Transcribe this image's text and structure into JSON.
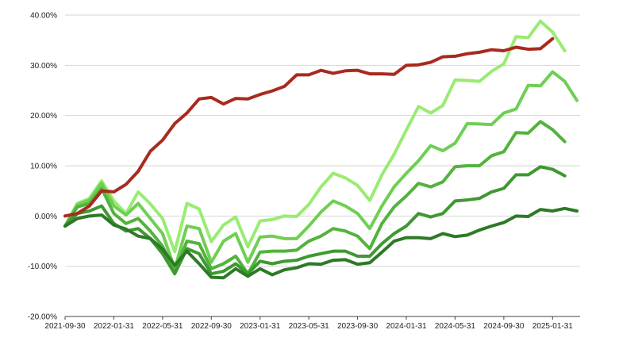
{
  "chart_data": {
    "type": "line",
    "title": "",
    "xlabel": "",
    "ylabel": "",
    "x_ticks": [
      "2021-09-30",
      "2022-01-31",
      "2022-05-31",
      "2022-09-30",
      "2023-01-31",
      "2023-05-31",
      "2023-09-30",
      "2024-01-31",
      "2024-05-31",
      "2024-09-30",
      "2025-01-31"
    ],
    "y_ticks": [
      "-20.00%",
      "-10.00%",
      "0.00%",
      "10.00%",
      "20.00%",
      "30.00%",
      "40.00%"
    ],
    "ylim": [
      -20,
      40
    ],
    "y_unit": "%",
    "grid": true,
    "legend": "none",
    "x": [
      "2021-09-30",
      "2021-10-31",
      "2021-11-30",
      "2021-12-31",
      "2022-01-31",
      "2022-02-28",
      "2022-03-31",
      "2022-04-30",
      "2022-05-31",
      "2022-06-30",
      "2022-07-31",
      "2022-08-31",
      "2022-09-30",
      "2022-10-31",
      "2022-11-30",
      "2022-12-31",
      "2023-01-31",
      "2023-02-28",
      "2023-03-31",
      "2023-04-30",
      "2023-05-31",
      "2023-06-30",
      "2023-07-31",
      "2023-08-31",
      "2023-09-30",
      "2023-10-31",
      "2023-11-30",
      "2023-12-31",
      "2024-01-31",
      "2024-02-29",
      "2024-03-31",
      "2024-04-30",
      "2024-05-31",
      "2024-06-30",
      "2024-07-31",
      "2024-08-31",
      "2024-09-30",
      "2024-10-31",
      "2024-11-30",
      "2024-12-31",
      "2025-01-31",
      "2025-02-28",
      "2025-03-31"
    ],
    "series": [
      {
        "color": "#a82a1e",
        "values": [
          0,
          0.5,
          2,
          5,
          4.8,
          6.3,
          8.9,
          12.9,
          15.1,
          18.4,
          20.5,
          23.3,
          23.6,
          22.3,
          23.4,
          23.3,
          24.2,
          24.9,
          25.8,
          28.1,
          28.1,
          29,
          28.4,
          28.9,
          29,
          28.3,
          28.3,
          28.2,
          30,
          30.1,
          30.6,
          31.7,
          31.8,
          32.3,
          32.6,
          33.1,
          32.9,
          33.6,
          33.2,
          33.3,
          35.3,
          null,
          null
        ]
      },
      {
        "color": "#99ec72",
        "values": [
          -2,
          2.5,
          3.5,
          7,
          3,
          0.5,
          4.8,
          2.4,
          -0.5,
          -7.1,
          2.5,
          1.4,
          -5.1,
          -1.8,
          -0.2,
          -6.1,
          -1,
          -0.7,
          0,
          -0.1,
          2.3,
          5.8,
          8.5,
          7.6,
          6.1,
          3.1,
          8.2,
          12.3,
          17.1,
          21.8,
          20.5,
          22,
          27.1,
          27,
          26.8,
          28.8,
          30.3,
          35.7,
          35.5,
          38.8,
          36.6,
          32.9,
          null
        ]
      },
      {
        "color": "#6ecf52",
        "values": [
          -2,
          2.2,
          3.2,
          6.5,
          2,
          0.2,
          2.5,
          -0.5,
          -3.5,
          -10.5,
          -2,
          -2.5,
          -9.2,
          -5,
          -3.5,
          -9.2,
          -4.2,
          -4,
          -4.5,
          -4.5,
          -2,
          0.8,
          3,
          2,
          0.5,
          -2.5,
          2,
          5.8,
          8.5,
          11,
          14,
          13,
          14.5,
          18.4,
          18.3,
          18.2,
          20.5,
          21.3,
          26,
          25.9,
          28.7,
          26.8,
          23
        ]
      },
      {
        "color": "#52b33d",
        "values": [
          -2,
          1.8,
          2.5,
          5.5,
          0.5,
          -1.5,
          -0.5,
          -3,
          -6,
          -11,
          -5,
          -5.5,
          -10.5,
          -9.5,
          -8,
          -11.5,
          -7.2,
          -7,
          -7,
          -6.8,
          -5,
          -4,
          -2.5,
          -3,
          -4,
          -6.5,
          -1.5,
          1.8,
          4,
          6.5,
          5.8,
          6.8,
          9.8,
          10,
          10,
          12,
          12.8,
          16.6,
          16.5,
          18.8,
          17.2,
          14.8,
          null
        ]
      },
      {
        "color": "#3f9931",
        "values": [
          -2,
          0.5,
          1,
          2,
          -1.5,
          -3,
          -2.5,
          -4.5,
          -7.5,
          -11.5,
          -6.5,
          -7.5,
          -11.5,
          -11,
          -9.5,
          -11.5,
          -9,
          -9.5,
          -9,
          -8.8,
          -8,
          -7.5,
          -7,
          -7,
          -8,
          -8,
          -5.5,
          -3.5,
          -2,
          0.5,
          -0.2,
          0.5,
          3,
          3.2,
          3.5,
          4.8,
          5.5,
          8.2,
          8.2,
          9.8,
          9.3,
          8,
          null
        ]
      },
      {
        "color": "#2d7a26",
        "values": [
          -2,
          -0.5,
          0,
          0.2,
          -1.8,
          -2.6,
          -4,
          -4.5,
          -6.6,
          -9.8,
          -7,
          -9.5,
          -12.2,
          -12.3,
          -10.5,
          -12,
          -10.5,
          -11.7,
          -10.7,
          -10.3,
          -9.5,
          -9.6,
          -8.8,
          -8.7,
          -9.6,
          -9.3,
          -7.2,
          -5,
          -4.3,
          -4.3,
          -4.5,
          -3.5,
          -4.1,
          -3.8,
          -2.8,
          -2,
          -1.3,
          0,
          -0.1,
          1.3,
          1,
          1.5,
          1
        ]
      }
    ]
  }
}
